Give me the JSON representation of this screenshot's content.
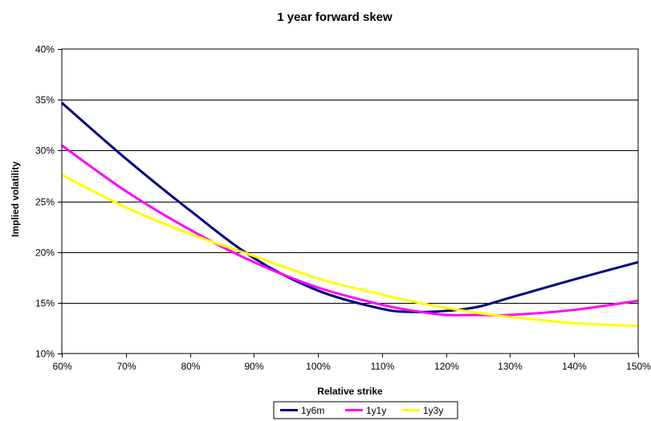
{
  "chart_data": {
    "type": "line",
    "title": "1 year forward skew",
    "xlabel": "Relative strike",
    "ylabel": "Implied volatility",
    "x_ticks": [
      "60%",
      "70%",
      "80%",
      "90%",
      "100%",
      "110%",
      "120%",
      "130%",
      "140%",
      "150%"
    ],
    "y_ticks": [
      "10%",
      "15%",
      "20%",
      "25%",
      "30%",
      "35%",
      "40%"
    ],
    "xlim": [
      60,
      150
    ],
    "ylim": [
      10,
      40
    ],
    "grid": "horizontal",
    "legend_position": "bottom",
    "x": [
      60,
      70,
      80,
      90,
      100,
      110,
      115,
      120,
      125,
      130,
      140,
      150
    ],
    "series": [
      {
        "name": "1y6m",
        "color": "#000080",
        "values": [
          34.7,
          29.2,
          24.1,
          19.4,
          16.2,
          14.4,
          14.1,
          14.2,
          14.6,
          15.5,
          17.3,
          19.0
        ]
      },
      {
        "name": "1y1y",
        "color": "#FF00FF",
        "values": [
          30.5,
          26.0,
          22.2,
          19.0,
          16.5,
          14.8,
          14.2,
          13.8,
          13.8,
          13.8,
          14.3,
          15.2
        ]
      },
      {
        "name": "1y3y",
        "color": "#FFFF00",
        "values": [
          27.6,
          24.4,
          21.8,
          19.6,
          17.4,
          15.8,
          15.1,
          14.5,
          14.0,
          13.6,
          13.0,
          12.7
        ]
      }
    ]
  }
}
